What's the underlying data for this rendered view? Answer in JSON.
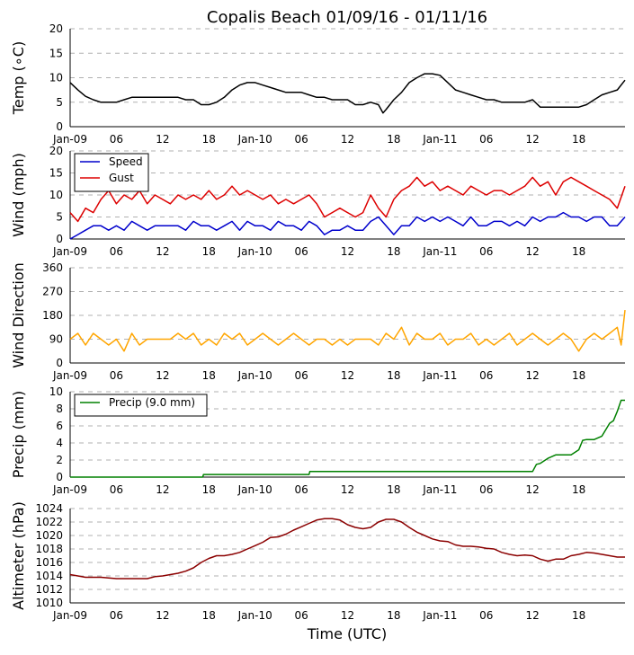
{
  "chart_data": {
    "type": "line",
    "title": "Copalis Beach 01/09/16 - 01/11/16",
    "xlabel": "Time (UTC)",
    "x_tick_labels": [
      "Jan-09",
      "06",
      "12",
      "18",
      "Jan-10",
      "06",
      "12",
      "18",
      "Jan-11",
      "06",
      "12",
      "18"
    ],
    "x_tick_hours": [
      0,
      6,
      12,
      18,
      24,
      30,
      36,
      42,
      48,
      54,
      60,
      66
    ],
    "x_range_hours": [
      0,
      72
    ],
    "grid": "horizontal-dashed",
    "panels": [
      {
        "id": "temp",
        "ylabel": "Temp (∘C)",
        "ylim": [
          0,
          20
        ],
        "yticks": [
          0,
          5,
          10,
          15,
          20
        ],
        "series": [
          {
            "name": "Temperature",
            "color": "#000000",
            "x": [
              0,
              1,
              2,
              3,
              4,
              5,
              6,
              7,
              8,
              9,
              10,
              11,
              12,
              13,
              14,
              15,
              16,
              17,
              18,
              19,
              20,
              21,
              22,
              23,
              24,
              25,
              26,
              27,
              28,
              29,
              30,
              31,
              32,
              33,
              34,
              35,
              36,
              37,
              38,
              39,
              40,
              40.6,
              41,
              42,
              43,
              44,
              45,
              46,
              47,
              48,
              49,
              50,
              51,
              52,
              53,
              54,
              55,
              56,
              57,
              58,
              59,
              60,
              61,
              62,
              63,
              64,
              65,
              66,
              67,
              68,
              69,
              70,
              71,
              72
            ],
            "y": [
              9,
              7.5,
              6.2,
              5.5,
              5,
              5,
              5,
              5.5,
              6,
              6,
              6,
              6,
              6,
              6,
              6,
              5.5,
              5.5,
              4.5,
              4.5,
              5,
              6,
              7.5,
              8.5,
              9,
              9,
              8.5,
              8,
              7.5,
              7,
              7,
              7,
              6.5,
              6,
              6,
              5.5,
              5.5,
              5.5,
              4.5,
              4.5,
              5,
              4.5,
              2.8,
              3.5,
              5.5,
              7,
              9,
              10,
              10.8,
              10.8,
              10.5,
              9,
              7.5,
              7,
              6.5,
              6,
              5.5,
              5.5,
              5,
              5,
              5,
              5,
              5.5,
              4,
              4,
              4,
              4,
              4,
              4,
              4.5,
              5.5,
              6.5,
              7,
              7.5,
              9.5
            ]
          }
        ]
      },
      {
        "id": "wind",
        "ylabel": "Wind (mph)",
        "ylim": [
          0,
          20
        ],
        "yticks": [
          0,
          5,
          10,
          15,
          20
        ],
        "legend": "top-left",
        "series": [
          {
            "name": "Speed",
            "color": "#0000cc",
            "x": [
              0,
              1,
              2,
              3,
              4,
              5,
              6,
              7,
              8,
              9,
              10,
              11,
              12,
              13,
              14,
              15,
              16,
              17,
              18,
              19,
              20,
              21,
              22,
              23,
              24,
              25,
              26,
              27,
              28,
              29,
              30,
              31,
              32,
              33,
              34,
              35,
              36,
              37,
              38,
              39,
              40,
              41,
              42,
              43,
              44,
              45,
              46,
              47,
              48,
              49,
              50,
              51,
              52,
              53,
              54,
              55,
              56,
              57,
              58,
              59,
              60,
              61,
              62,
              63,
              64,
              65,
              66,
              67,
              68,
              69,
              70,
              71,
              72
            ],
            "y": [
              0,
              1,
              2,
              3,
              3,
              2,
              3,
              2,
              4,
              3,
              2,
              3,
              3,
              3,
              3,
              2,
              4,
              3,
              3,
              2,
              3,
              4,
              2,
              4,
              3,
              3,
              2,
              4,
              3,
              3,
              2,
              4,
              3,
              1,
              2,
              2,
              3,
              2,
              2,
              4,
              5,
              3,
              1,
              3,
              3,
              5,
              4,
              5,
              4,
              5,
              4,
              3,
              5,
              3,
              3,
              4,
              4,
              3,
              4,
              3,
              5,
              4,
              5,
              5,
              6,
              5,
              5,
              4,
              5,
              5,
              3,
              3,
              5
            ]
          },
          {
            "name": "Gust",
            "color": "#dd0000",
            "x": [
              0,
              1,
              2,
              3,
              4,
              5,
              6,
              7,
              8,
              9,
              10,
              11,
              12,
              13,
              14,
              15,
              16,
              17,
              18,
              19,
              20,
              21,
              22,
              23,
              24,
              25,
              26,
              27,
              28,
              29,
              30,
              31,
              32,
              33,
              34,
              35,
              36,
              37,
              38,
              39,
              40,
              41,
              42,
              43,
              44,
              45,
              46,
              47,
              48,
              49,
              50,
              51,
              52,
              53,
              54,
              55,
              56,
              57,
              58,
              59,
              60,
              61,
              62,
              63,
              64,
              65,
              66,
              67,
              68,
              69,
              70,
              71,
              72
            ],
            "y": [
              6,
              4,
              7,
              6,
              9,
              11,
              8,
              10,
              9,
              11,
              8,
              10,
              9,
              8,
              10,
              9,
              10,
              9,
              11,
              9,
              10,
              12,
              10,
              11,
              10,
              9,
              10,
              8,
              9,
              8,
              9,
              10,
              8,
              5,
              6,
              7,
              6,
              5,
              6,
              10,
              7,
              5,
              9,
              11,
              12,
              14,
              12,
              13,
              11,
              12,
              11,
              10,
              12,
              11,
              10,
              11,
              11,
              10,
              11,
              12,
              14,
              12,
              13,
              10,
              13,
              14,
              13,
              12,
              11,
              10,
              9,
              7,
              12
            ]
          }
        ]
      },
      {
        "id": "dir",
        "ylabel": "Wind Direction",
        "ylim": [
          0,
          360
        ],
        "yticks": [
          0,
          90,
          180,
          270,
          360
        ],
        "series": [
          {
            "name": "Direction",
            "color": "#ffa500",
            "x": [
              0,
              1,
              2,
              3,
              4,
              5,
              6,
              7,
              8,
              9,
              10,
              11,
              12,
              13,
              14,
              15,
              16,
              17,
              18,
              19,
              20,
              21,
              22,
              23,
              24,
              25,
              26,
              27,
              28,
              29,
              30,
              31,
              32,
              33,
              34,
              35,
              36,
              37,
              38,
              39,
              40,
              41,
              42,
              43,
              44,
              45,
              46,
              47,
              48,
              49,
              50,
              51,
              52,
              53,
              54,
              55,
              56,
              57,
              58,
              59,
              60,
              61,
              62,
              63,
              64,
              65,
              66,
              67,
              68,
              69,
              70,
              71,
              71.5,
              72
            ],
            "y": [
              90,
              112,
              68,
              112,
              90,
              68,
              90,
              45,
              112,
              68,
              90,
              90,
              90,
              90,
              112,
              90,
              112,
              68,
              90,
              68,
              112,
              90,
              112,
              68,
              90,
              112,
              90,
              68,
              90,
              112,
              90,
              68,
              90,
              90,
              68,
              90,
              68,
              90,
              90,
              90,
              68,
              112,
              90,
              135,
              68,
              112,
              90,
              90,
              112,
              68,
              90,
              90,
              112,
              68,
              90,
              68,
              90,
              112,
              68,
              90,
              112,
              90,
              68,
              90,
              112,
              90,
              45,
              90,
              112,
              90,
              112,
              135,
              68,
              200
            ]
          }
        ]
      },
      {
        "id": "precip",
        "ylabel": "Precip (mm)",
        "ylim": [
          0,
          10
        ],
        "yticks": [
          0,
          2,
          4,
          6,
          8,
          10
        ],
        "legend": "top-left",
        "series": [
          {
            "name": "Precip (9.0 mm)",
            "color": "#008000",
            "x": [
              0,
              17.2,
              17.3,
              31,
              31.1,
              60,
              60.5,
              61,
              62,
              63,
              64,
              65,
              66,
              66.5,
              67,
              68,
              69,
              70,
              70.5,
              71,
              71.5,
              72
            ],
            "y": [
              0,
              0,
              0.3,
              0.3,
              0.65,
              0.65,
              1.5,
              1.6,
              2.2,
              2.6,
              2.6,
              2.6,
              3.2,
              4.3,
              4.4,
              4.4,
              4.8,
              6.3,
              6.6,
              7.7,
              9,
              9
            ]
          }
        ]
      },
      {
        "id": "altimeter",
        "ylabel": "Altimeter (hPa)",
        "ylim": [
          1010,
          1024
        ],
        "yticks": [
          1010,
          1012,
          1014,
          1016,
          1018,
          1020,
          1022,
          1024
        ],
        "series": [
          {
            "name": "Altimeter",
            "color": "#8b0000",
            "x": [
              0,
              1,
              2,
              3,
              4,
              5,
              6,
              7,
              8,
              9,
              10,
              11,
              12,
              13,
              14,
              15,
              16,
              17,
              18,
              19,
              20,
              21,
              22,
              23,
              24,
              25,
              26,
              27,
              28,
              29,
              30,
              31,
              32,
              33,
              34,
              35,
              36,
              37,
              38,
              39,
              40,
              41,
              42,
              43,
              44,
              45,
              46,
              47,
              48,
              49,
              50,
              51,
              52,
              53,
              54,
              55,
              56,
              57,
              58,
              59,
              60,
              61,
              62,
              63,
              64,
              65,
              66,
              67,
              68,
              69,
              70,
              71,
              72
            ],
            "y": [
              1014.2,
              1014,
              1013.8,
              1013.8,
              1013.8,
              1013.7,
              1013.6,
              1013.6,
              1013.6,
              1013.6,
              1013.6,
              1013.9,
              1014,
              1014.2,
              1014.4,
              1014.7,
              1015.2,
              1016,
              1016.6,
              1017,
              1017,
              1017.2,
              1017.5,
              1018,
              1018.5,
              1019,
              1019.7,
              1019.8,
              1020.2,
              1020.8,
              1021.3,
              1021.8,
              1022.3,
              1022.5,
              1022.5,
              1022.3,
              1021.6,
              1021.2,
              1021,
              1021.2,
              1022,
              1022.4,
              1022.4,
              1022,
              1021.2,
              1020.5,
              1020,
              1019.5,
              1019.2,
              1019.1,
              1018.6,
              1018.4,
              1018.4,
              1018.3,
              1018.1,
              1018,
              1017.5,
              1017.2,
              1017,
              1017.1,
              1017,
              1016.5,
              1016.2,
              1016.5,
              1016.5,
              1017,
              1017.2,
              1017.5,
              1017.4,
              1017.2,
              1017,
              1016.8,
              1016.8
            ]
          }
        ]
      }
    ]
  }
}
